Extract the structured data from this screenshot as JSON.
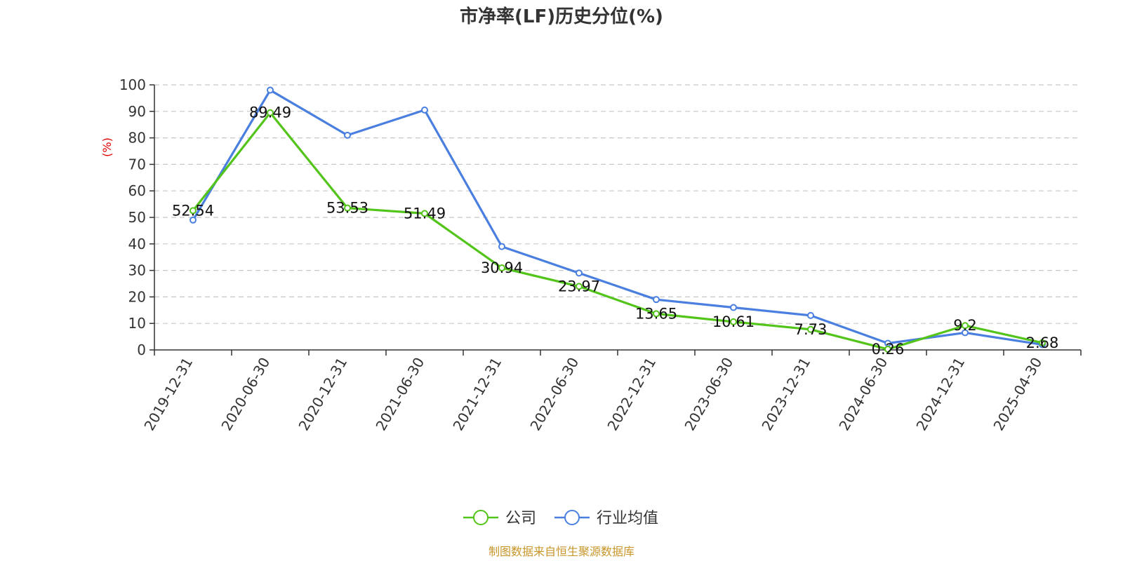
{
  "chart_data": {
    "type": "line",
    "title": "市净率(LF)历史分位(%)",
    "ylabel": "(%)",
    "ylim": [
      0,
      100
    ],
    "yticks": [
      0,
      10,
      20,
      30,
      40,
      50,
      60,
      70,
      80,
      90,
      100
    ],
    "grid": true,
    "legend_position": "bottom",
    "categories": [
      "2019-12-31",
      "2020-06-30",
      "2020-12-31",
      "2021-06-30",
      "2021-12-31",
      "2022-06-30",
      "2022-12-31",
      "2023-06-30",
      "2023-12-31",
      "2024-06-30",
      "2024-12-31",
      "2025-04-30"
    ],
    "series": [
      {
        "name": "公司",
        "color": "#52c41a",
        "values": [
          52.54,
          89.49,
          53.53,
          51.49,
          30.94,
          23.97,
          13.65,
          10.61,
          7.73,
          0.26,
          9.2,
          2.68
        ],
        "labels": [
          "52.54",
          "89.49",
          "53.53",
          "51.49",
          "30.94",
          "23.97",
          "13.65",
          "10.61",
          "7.73",
          "0.26",
          "9.2",
          "2.68"
        ]
      },
      {
        "name": "行业均值",
        "color": "#4a7fe0",
        "values": [
          49,
          98,
          81,
          90.5,
          39,
          29,
          19,
          16,
          13,
          2.5,
          6.5,
          2
        ]
      }
    ]
  },
  "source": "制图数据来自恒生聚源数据库"
}
